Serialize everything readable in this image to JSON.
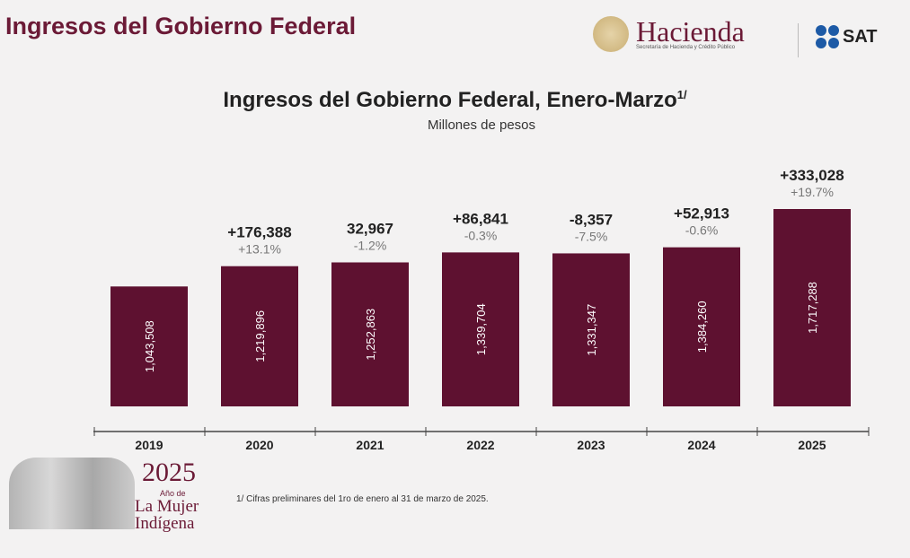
{
  "header": {
    "title": "Ingresos del Gobierno Federal",
    "hacienda": "Hacienda",
    "hacienda_sub": "Secretaría de Hacienda y Crédito Público",
    "sat": "SAT"
  },
  "logo": {
    "year": "2025",
    "line1": "Año de",
    "line2": "La Mujer",
    "line3": "Indígena"
  },
  "footnote": "1/ Cifras preliminares del 1ro de enero al 31 de marzo de 2025.",
  "colors": {
    "bar": "#5e1130",
    "accent": "#6b1a36"
  },
  "chart_data": {
    "type": "bar",
    "title": "Ingresos del Gobierno Federal, Enero-Marzo",
    "title_sup": "1/",
    "subtitle": "Millones de pesos",
    "categories": [
      "2019",
      "2020",
      "2021",
      "2022",
      "2023",
      "2024",
      "2025"
    ],
    "values": [
      1043508,
      1219896,
      1252863,
      1339704,
      1331347,
      1384260,
      1717288
    ],
    "value_labels": [
      "1,043,508",
      "1,219,896",
      "1,252,863",
      "1,339,704",
      "1,331,347",
      "1,384,260",
      "1,717,288"
    ],
    "change_labels": [
      "",
      "+176,388",
      "32,967",
      "+86,841",
      "-8,357",
      "+52,913",
      "+333,028"
    ],
    "pct_labels": [
      "",
      "+13.1%",
      "-1.2%",
      "-0.3%",
      "-7.5%",
      "-0.6%",
      "+19.7%"
    ],
    "ylim": [
      0,
      1717288
    ],
    "grid": false
  }
}
